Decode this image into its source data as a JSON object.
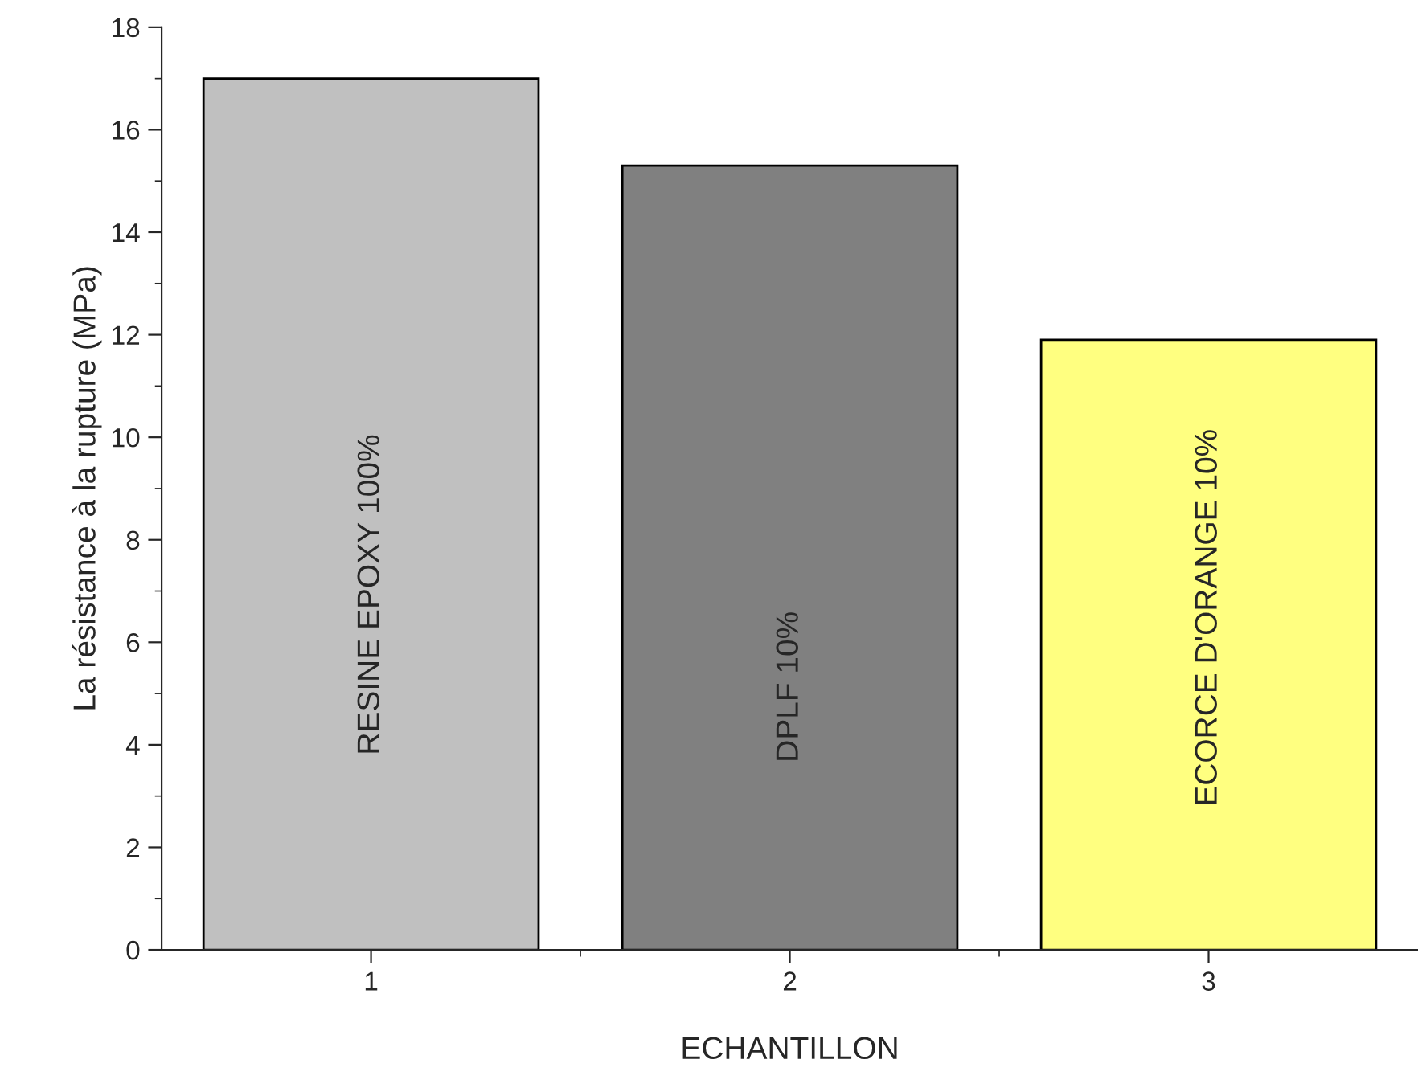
{
  "chart_data": {
    "type": "bar",
    "xlabel": "ECHANTILLON",
    "ylabel": "La résistance à la rupture (MPa)",
    "categories": [
      "1",
      "2",
      "3"
    ],
    "values": [
      17.0,
      15.3,
      11.9
    ],
    "colors": [
      "#c0c0c0",
      "#808080",
      "#ffff80"
    ],
    "ylim": [
      0,
      18
    ],
    "yticks": [
      0,
      2,
      4,
      6,
      8,
      10,
      12,
      14,
      16,
      18
    ],
    "grid": false,
    "legend": false,
    "annotations": [
      "RESINE EPOXY 100%",
      "DPLF 10%",
      "ECORCE D'ORANGE 10%"
    ]
  }
}
